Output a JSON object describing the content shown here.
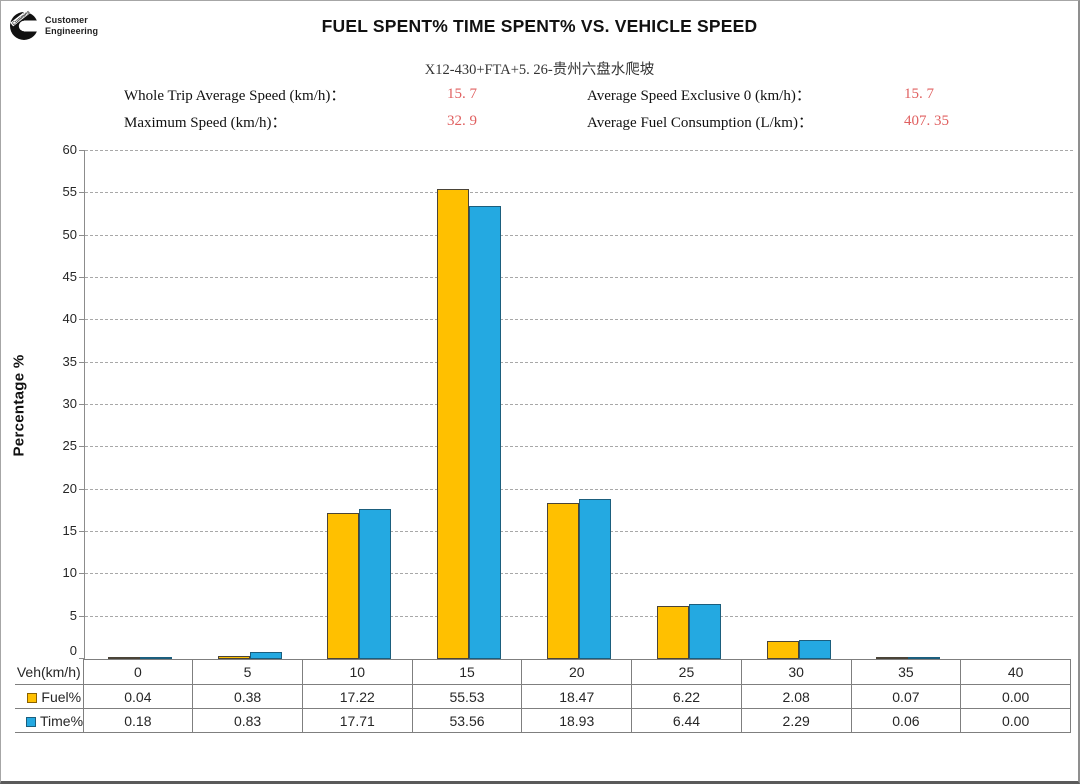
{
  "logo": {
    "brand": "cummins",
    "line1": "Customer",
    "line2": "Engineering"
  },
  "title": "FUEL SPENT% TIME SPENT% VS. VEHICLE SPEED",
  "subtitle": "X12-430+FTA+5. 26-贵州六盘水爬坡",
  "stats": {
    "whole_trip_avg_speed": {
      "label": "Whole Trip Average Speed (km/h)：",
      "value": "15. 7"
    },
    "maximum_speed": {
      "label": "Maximum Speed (km/h)：",
      "value": "32. 9"
    },
    "avg_speed_exclusive_0": {
      "label": "Average Speed Exclusive 0 (km/h)：",
      "value": "15. 7"
    },
    "avg_fuel_consumption": {
      "label": "Average Fuel Consumption (L/km)：",
      "value": "407. 35"
    }
  },
  "colors": {
    "fuel": "#FFC000",
    "time": "#24A9E1",
    "stat_value_red": "#e06060",
    "gridline": "#a8a8a8"
  },
  "chart_data": {
    "type": "bar",
    "title": "FUEL SPENT% TIME SPENT% VS. VEHICLE SPEED",
    "subtitle": "X12-430+FTA+5. 26-贵州六盘水爬坡",
    "xlabel": "Veh(km/h)",
    "ylabel": "Percentage %",
    "ylim": [
      0,
      60
    ],
    "ytick_step": 5,
    "grid": "horizontal dashed",
    "legend_position": "table-left",
    "categories": [
      0,
      5,
      10,
      15,
      20,
      25,
      30,
      35,
      40
    ],
    "series": [
      {
        "name": "Fuel%",
        "color": "#FFC000",
        "values": [
          0.04,
          0.38,
          17.22,
          55.53,
          18.47,
          6.22,
          2.08,
          0.07,
          0.0
        ]
      },
      {
        "name": "Time%",
        "color": "#24A9E1",
        "values": [
          0.18,
          0.83,
          17.71,
          53.56,
          18.93,
          6.44,
          2.29,
          0.06,
          0.0
        ]
      }
    ]
  },
  "table": {
    "row_header": "Veh(km/h)",
    "columns": [
      "0",
      "5",
      "10",
      "15",
      "20",
      "25",
      "30",
      "35",
      "40"
    ],
    "rows": [
      {
        "label": "Fuel%",
        "series": "fuel",
        "values": [
          "0.04",
          "0.38",
          "17.22",
          "55.53",
          "18.47",
          "6.22",
          "2.08",
          "0.07",
          "0.00"
        ]
      },
      {
        "label": "Time%",
        "series": "time",
        "values": [
          "0.18",
          "0.83",
          "17.71",
          "53.56",
          "18.93",
          "6.44",
          "2.29",
          "0.06",
          "0.00"
        ]
      }
    ]
  }
}
